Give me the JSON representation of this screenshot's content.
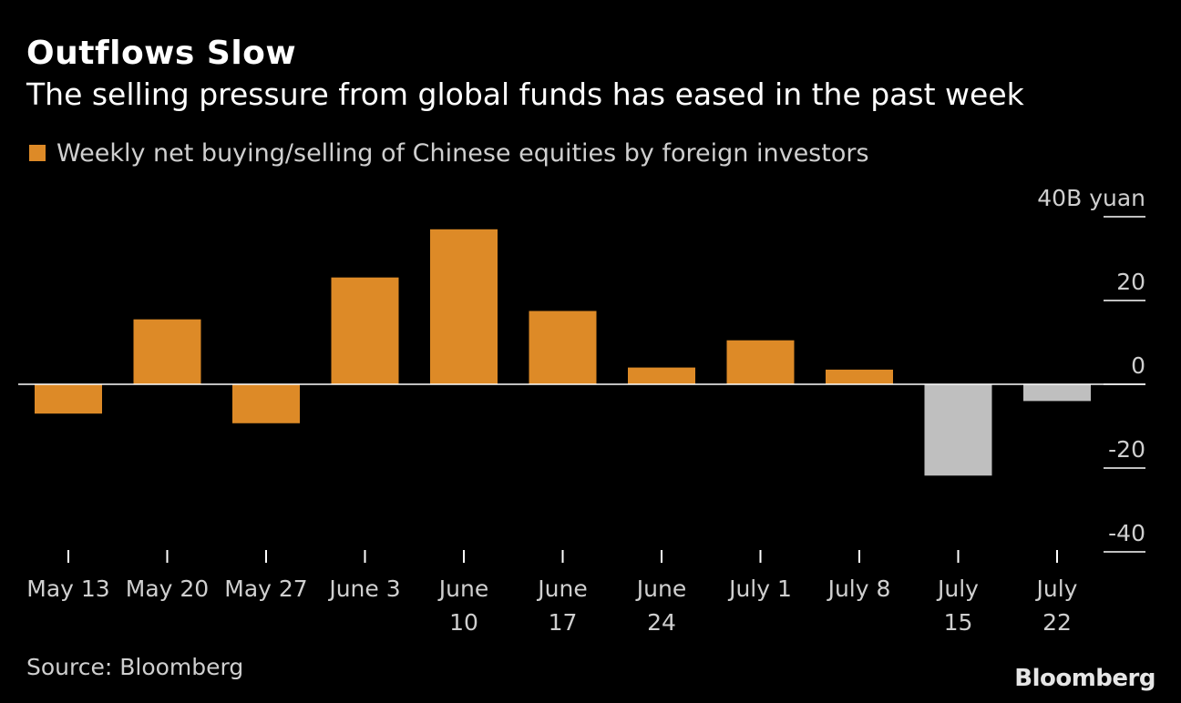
{
  "title": "Outflows Slow",
  "subtitle": "The selling pressure from global funds has eased in the past week",
  "source": "Source: Bloomberg",
  "brand": "Bloomberg",
  "colors": {
    "background": "#000000",
    "positive": "#dd8a27",
    "negative_recent": "#bfbfbf",
    "text": "#ffffff",
    "muted": "#cfcfcf"
  },
  "chart_data": {
    "type": "bar",
    "legend": [
      "Weekly net buying/selling of Chinese equities by foreign investors"
    ],
    "categories": [
      [
        "May 13"
      ],
      [
        "May 20"
      ],
      [
        "May 27"
      ],
      [
        "June 3"
      ],
      [
        "June",
        "10"
      ],
      [
        "June",
        "17"
      ],
      [
        "June",
        "24"
      ],
      [
        "July 1"
      ],
      [
        "July 8"
      ],
      [
        "July",
        "15"
      ],
      [
        "July",
        "22"
      ]
    ],
    "values": [
      -7,
      15.5,
      -9.3,
      25.5,
      37,
      17.5,
      4,
      10.5,
      3.5,
      -21.8,
      -4
    ],
    "highlight": [
      false,
      false,
      false,
      false,
      false,
      false,
      false,
      false,
      false,
      true,
      true
    ],
    "y_ticks": [
      40,
      20,
      0,
      -20,
      -40
    ],
    "y_tick_labels": [
      "40B yuan",
      "20",
      "0",
      "-20",
      "-40"
    ],
    "ylim": [
      -40,
      40
    ],
    "units": "B yuan",
    "axis_position": "right"
  }
}
